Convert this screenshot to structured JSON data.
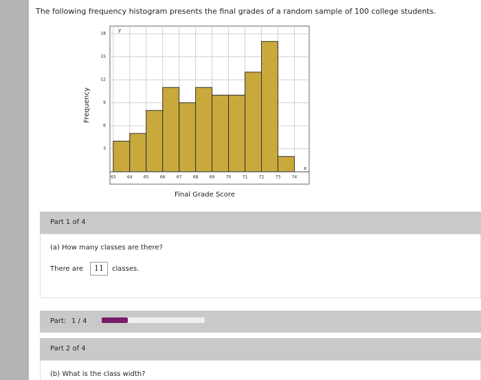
{
  "question": "The following frequency histogram presents the final grades of a random sample of 100 college students.",
  "chart_data": {
    "type": "histogram",
    "x_label": "Final Grade Score",
    "y_label": "Frequency",
    "x_symbol": "x",
    "y_symbol": "y",
    "bins": [
      63,
      64,
      65,
      66,
      67,
      68,
      69,
      70,
      71,
      72,
      73,
      74
    ],
    "counts": [
      4,
      5,
      8,
      11,
      9,
      11,
      10,
      10,
      13,
      17,
      2
    ],
    "color": "#c9a83c",
    "xlim": [
      62.8,
      74.9
    ],
    "xticks": [
      63,
      64,
      65,
      66,
      67,
      68,
      69,
      70,
      71,
      72,
      73,
      74
    ],
    "ylim": [
      0,
      19
    ],
    "yticks": [
      3,
      6,
      9,
      12,
      15,
      18
    ],
    "grid": true
  },
  "part1": {
    "header": "Part 1 of 4",
    "prompt": "(a) How many classes are there?",
    "answer_before": "There are",
    "answer": "11",
    "answer_after": "classes."
  },
  "progress": {
    "label": "Part:",
    "status": "1 / 4"
  },
  "part2": {
    "header": "Part 2 of 4",
    "prompt": "(b) What is the class width?"
  }
}
